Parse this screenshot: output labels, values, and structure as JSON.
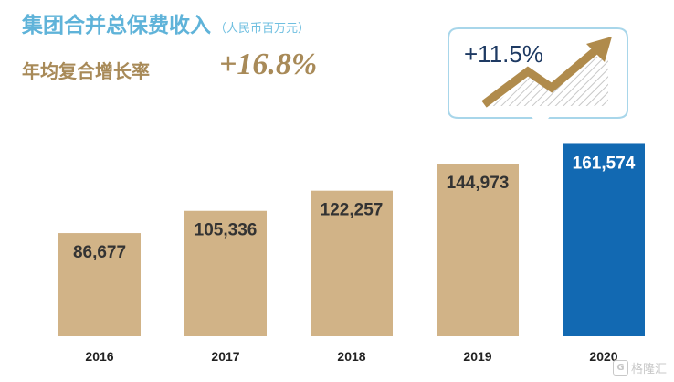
{
  "title": "集团合并总保费收入",
  "unit_note": "（人民币百万元）",
  "cagr": {
    "label": "年均复合增长率",
    "value": "+16.8%"
  },
  "callout": {
    "text": "+11.5%",
    "icon": "trend-up-arrow-icon"
  },
  "watermark": {
    "text": "格隆汇",
    "icon": "g-logo-icon"
  },
  "colors": {
    "bar": "#d1b387",
    "highlight_bar": "#1269b2",
    "title": "#5fb3d9",
    "cagr": "#a88a58"
  },
  "chart_data": {
    "type": "bar",
    "categories": [
      "2016",
      "2017",
      "2018",
      "2019",
      "2020"
    ],
    "values": [
      86677,
      105336,
      122257,
      144973,
      161574
    ],
    "value_labels": [
      "86,677",
      "105,336",
      "122,257",
      "144,973",
      "161,574"
    ],
    "highlight_index": 4,
    "ylim": [
      0,
      165000
    ],
    "grid": false,
    "title": "",
    "xlabel": "",
    "ylabel": ""
  }
}
